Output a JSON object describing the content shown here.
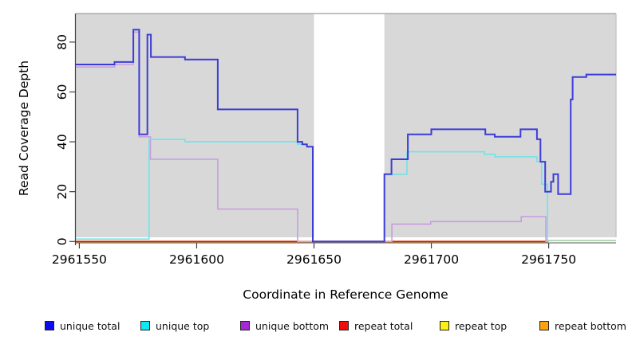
{
  "chart_data": {
    "type": "line",
    "step": true,
    "title": "",
    "xlabel": "Coordinate in Reference Genome",
    "ylabel": "Read Coverage Depth",
    "xlim": [
      2961548.5,
      2961778.7
    ],
    "ylim": [
      0,
      91
    ],
    "xticks": [
      2961550,
      2961600,
      2961650,
      2961700,
      2961750
    ],
    "yticks": [
      0,
      20,
      40,
      60,
      80
    ],
    "no_data_region": [
      2961650,
      2961680
    ],
    "panel_bg": "#d8d8d8",
    "legend_position": "bottom",
    "grid": false,
    "series": [
      {
        "name": "unique total",
        "color": "#3c3cd9",
        "legend_color": "#0b0bf0",
        "width": 2,
        "end": 2961778.7,
        "points": [
          [
            2961548.5,
            71
          ],
          [
            2961565,
            72
          ],
          [
            2961573,
            85
          ],
          [
            2961575.5,
            43
          ],
          [
            2961579,
            83
          ],
          [
            2961580.5,
            74
          ],
          [
            2961595,
            73
          ],
          [
            2961609,
            53
          ],
          [
            2961643,
            40
          ],
          [
            2961645,
            39
          ],
          [
            2961647,
            38
          ],
          [
            2961649.5,
            0
          ],
          [
            2961680,
            27
          ],
          [
            2961683,
            33
          ],
          [
            2961690,
            43
          ],
          [
            2961700,
            45
          ],
          [
            2961723,
            43
          ],
          [
            2961727,
            42
          ],
          [
            2961738,
            45
          ],
          [
            2961745,
            41
          ],
          [
            2961746.5,
            32
          ],
          [
            2961748.5,
            20
          ],
          [
            2961751,
            24
          ],
          [
            2961752,
            27
          ],
          [
            2961754,
            19
          ],
          [
            2961759.4,
            57
          ],
          [
            2961760.2,
            66
          ],
          [
            2961766,
            67
          ]
        ]
      },
      {
        "name": "unique top",
        "color": "#6fe3e9",
        "legend_color": "#0ce9f2",
        "width": 1.6,
        "end": 2961778.7,
        "points": [
          [
            2961548.5,
            1
          ],
          [
            2961579.7,
            41
          ],
          [
            2961595,
            40
          ],
          [
            2961643,
            39
          ],
          [
            2961647,
            38
          ],
          [
            2961649.5,
            0
          ],
          [
            2961680,
            27
          ],
          [
            2961689.6,
            36
          ],
          [
            2961722.6,
            35
          ],
          [
            2961727,
            34
          ],
          [
            2961745,
            32
          ],
          [
            2961747,
            23
          ],
          [
            2961749.5,
            0.4,
            "#96cc9c"
          ]
        ]
      },
      {
        "name": "unique bottom",
        "color": "#c89de0",
        "legend_color": "#a32ad4",
        "width": 1.6,
        "end": 2961750,
        "points": [
          [
            2961548.5,
            70
          ],
          [
            2961565,
            71
          ],
          [
            2961573,
            84
          ],
          [
            2961575.5,
            42
          ],
          [
            2961580.3,
            33
          ],
          [
            2961609,
            13
          ],
          [
            2961643,
            0
          ],
          [
            2961683.2,
            7
          ],
          [
            2961699.7,
            8
          ],
          [
            2961738.3,
            10
          ],
          [
            2961748.8,
            0
          ]
        ]
      },
      {
        "name": "repeat total",
        "color": "#dd1111",
        "legend_color": "#f20d0d",
        "width": 1.6,
        "end": 2961749.5,
        "points": [
          [
            2961548.5,
            0
          ]
        ]
      },
      {
        "name": "repeat top",
        "color": "#f5e626",
        "legend_color": "#fbf116",
        "width": 1.6,
        "end": 2961749.5,
        "points": [
          [
            2961548.5,
            0
          ]
        ]
      },
      {
        "name": "repeat bottom",
        "color": "#ff9d2b",
        "legend_color": "#ffa313",
        "width": 2.2,
        "end": 2961749.5,
        "points": [
          [
            2961548.5,
            0
          ]
        ]
      }
    ]
  }
}
